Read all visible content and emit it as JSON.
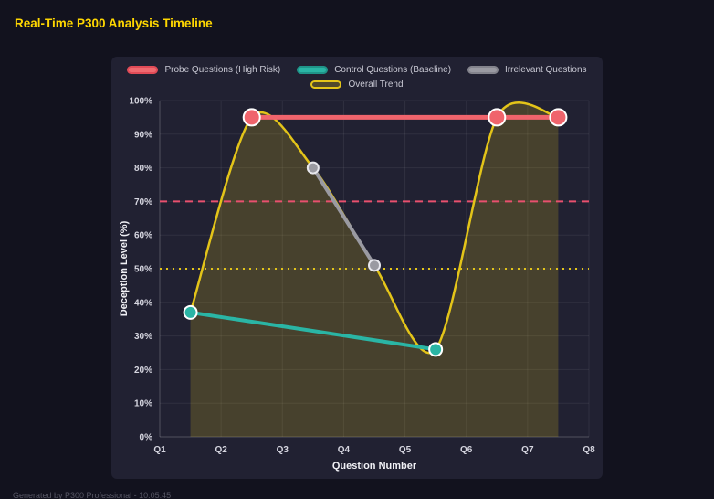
{
  "page": {
    "title": "Real-Time P300 Analysis Timeline",
    "footer": "Generated by P300 Professional - 10:05:45"
  },
  "colors": {
    "page_bg": "#12121e",
    "panel_bg": "#212132",
    "title": "#ffd700",
    "grid": "rgba(255,255,255,0.07)",
    "axis_border": "rgba(255,255,255,0.16)",
    "tick_label": "#d6d6e0",
    "axis_title": "#f0f0f5",
    "legend_label": "#c9c9d4",
    "footer": "#565664"
  },
  "chart_data": {
    "type": "line",
    "title": "Real-Time P300 Analysis Timeline",
    "xlabel": "Question Number",
    "ylabel": "Deception Level (%)",
    "xlim": [
      1,
      8
    ],
    "ylim": [
      0,
      100
    ],
    "grid": true,
    "legend_position": "top",
    "x_ticks": [
      {
        "value": 1,
        "label": "Q1"
      },
      {
        "value": 2,
        "label": "Q2"
      },
      {
        "value": 3,
        "label": "Q3"
      },
      {
        "value": 4,
        "label": "Q4"
      },
      {
        "value": 5,
        "label": "Q5"
      },
      {
        "value": 6,
        "label": "Q6"
      },
      {
        "value": 7,
        "label": "Q7"
      },
      {
        "value": 8,
        "label": "Q8"
      }
    ],
    "y_ticks": [
      {
        "value": 0,
        "label": "0%"
      },
      {
        "value": 10,
        "label": "10%"
      },
      {
        "value": 20,
        "label": "20%"
      },
      {
        "value": 30,
        "label": "30%"
      },
      {
        "value": 40,
        "label": "40%"
      },
      {
        "value": 50,
        "label": "50%"
      },
      {
        "value": 60,
        "label": "60%"
      },
      {
        "value": 70,
        "label": "70%"
      },
      {
        "value": 80,
        "label": "80%"
      },
      {
        "value": 90,
        "label": "90%"
      },
      {
        "value": 100,
        "label": "100%"
      }
    ],
    "thresholds": [
      {
        "value": 70,
        "color": "#e8506e",
        "style": "dashed"
      },
      {
        "value": 50,
        "color": "#e3c419",
        "style": "dotted"
      }
    ],
    "series": [
      {
        "name": "Probe Questions (High Risk)",
        "color": "#f0646c",
        "legend_fill": "#ef6a70",
        "legend_border": "#e14b57",
        "marker_border": "#ffffff",
        "marker_radius": 9,
        "line_width": 5,
        "smooth": false,
        "points": [
          {
            "x": 2.5,
            "y": 95
          },
          {
            "x": 6.5,
            "y": 95
          },
          {
            "x": 7.5,
            "y": 95
          }
        ]
      },
      {
        "name": "Control Questions (Baseline)",
        "color": "#2ab5a5",
        "legend_fill": "#2ab5a5",
        "legend_border": "#1f9489",
        "marker_border": "#ffffff",
        "marker_radius": 7,
        "line_width": 4,
        "smooth": false,
        "points": [
          {
            "x": 1.5,
            "y": 37
          },
          {
            "x": 5.5,
            "y": 26
          }
        ]
      },
      {
        "name": "Irrelevant Questions",
        "color": "#9a9aa2",
        "legend_fill": "#9a9aa2",
        "legend_border": "#83838c",
        "marker_border": "#e8e8ee",
        "marker_radius": 6,
        "line_width": 4,
        "smooth": false,
        "points": [
          {
            "x": 3.5,
            "y": 80
          },
          {
            "x": 4.5,
            "y": 51
          }
        ]
      },
      {
        "name": "Overall Trend",
        "color": "#e3c419",
        "legend_fill": "rgba(227,196,25,0.25)",
        "legend_border": "#e3c419",
        "marker_border": "#e3c419",
        "marker_radius": 0,
        "line_width": 2.5,
        "smooth": true,
        "area_fill": "rgba(227,196,25,0.20)",
        "points": [
          {
            "x": 1.5,
            "y": 37
          },
          {
            "x": 2.5,
            "y": 95
          },
          {
            "x": 3.5,
            "y": 80
          },
          {
            "x": 4.5,
            "y": 51
          },
          {
            "x": 5.5,
            "y": 26
          },
          {
            "x": 6.5,
            "y": 95
          },
          {
            "x": 7.5,
            "y": 95
          }
        ]
      }
    ],
    "legend_rows": [
      [
        0,
        1,
        2
      ],
      [
        3
      ]
    ]
  }
}
